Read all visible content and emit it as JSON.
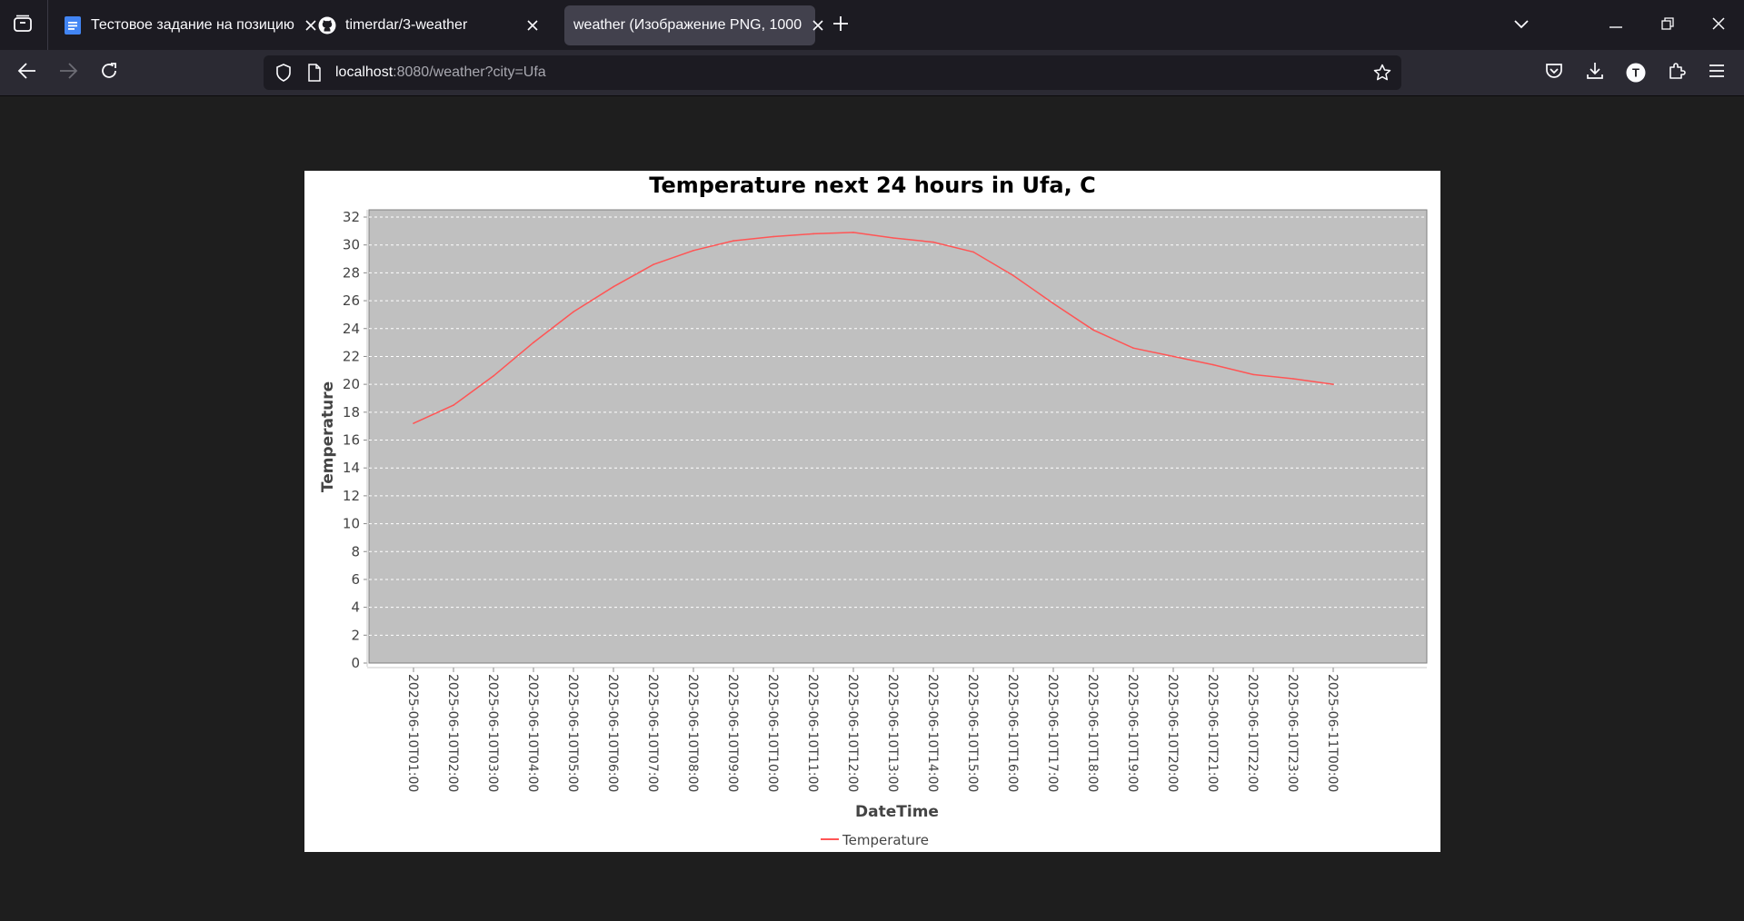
{
  "tabs": [
    {
      "label": "Тестовое задание на позицию",
      "icon": "google-docs-icon",
      "active": false
    },
    {
      "label": "timerdar/3-weather",
      "icon": "github-icon",
      "active": false
    },
    {
      "label": "weather (Изображение PNG, 1000",
      "icon": "",
      "active": true
    }
  ],
  "navbar": {
    "url_host": "localhost",
    "url_path": ":8080/weather?city=Ufa",
    "account_initial": "T"
  },
  "colors": {
    "series": "#ff5555",
    "plot_background": "#c0c0c0",
    "gridline": "#ffffff"
  },
  "chart_data": {
    "type": "line",
    "title": "Temperature next 24 hours in Ufa, C",
    "xlabel": "DateTime",
    "ylabel": "Temperature",
    "ylim": [
      0,
      32
    ],
    "yticks": [
      0,
      2,
      4,
      6,
      8,
      10,
      12,
      14,
      16,
      18,
      20,
      22,
      24,
      26,
      28,
      30,
      32
    ],
    "grid": true,
    "legend_position": "bottom-center",
    "categories": [
      "2025-06-10T01:00",
      "2025-06-10T02:00",
      "2025-06-10T03:00",
      "2025-06-10T04:00",
      "2025-06-10T05:00",
      "2025-06-10T06:00",
      "2025-06-10T07:00",
      "2025-06-10T08:00",
      "2025-06-10T09:00",
      "2025-06-10T10:00",
      "2025-06-10T11:00",
      "2025-06-10T12:00",
      "2025-06-10T13:00",
      "2025-06-10T14:00",
      "2025-06-10T15:00",
      "2025-06-10T16:00",
      "2025-06-10T17:00",
      "2025-06-10T18:00",
      "2025-06-10T19:00",
      "2025-06-10T20:00",
      "2025-06-10T21:00",
      "2025-06-10T22:00",
      "2025-06-10T23:00",
      "2025-06-11T00:00"
    ],
    "series": [
      {
        "name": "Temperature",
        "values": [
          17.2,
          18.5,
          20.6,
          23.0,
          25.2,
          27.0,
          28.6,
          29.6,
          30.3,
          30.6,
          30.8,
          30.9,
          30.5,
          30.2,
          29.5,
          27.8,
          25.8,
          23.9,
          22.6,
          22.0,
          21.4,
          20.7,
          20.4,
          20.0
        ]
      }
    ]
  }
}
